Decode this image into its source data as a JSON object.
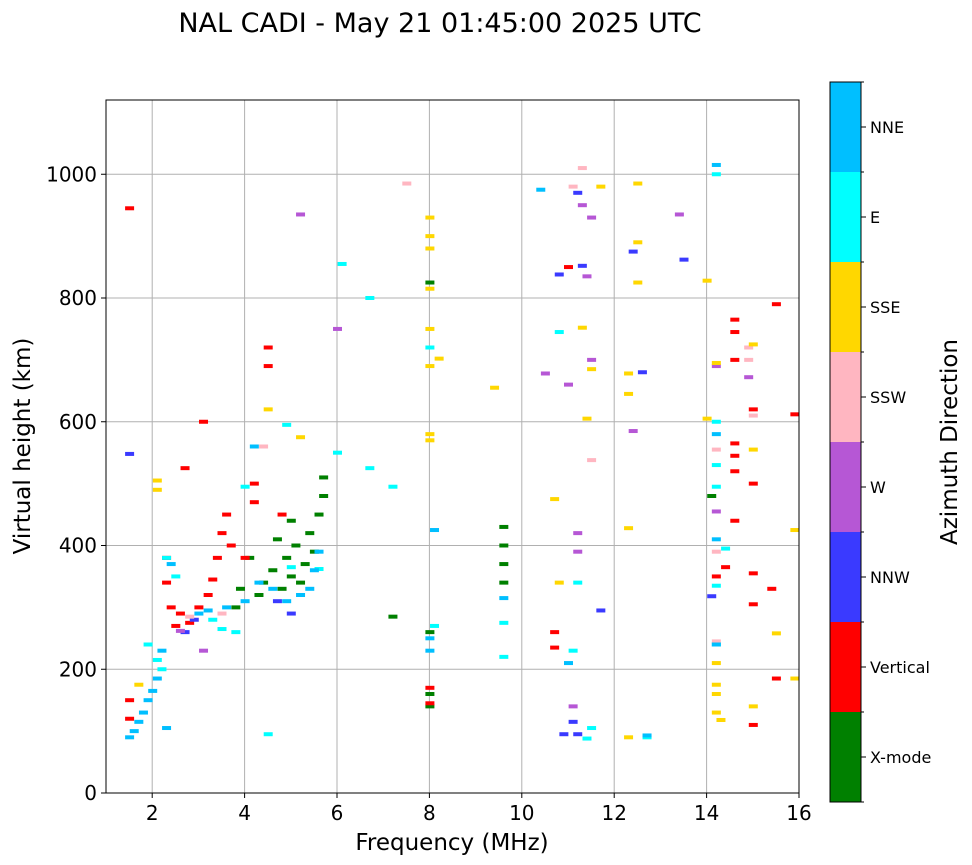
{
  "chart_data": {
    "type": "scatter",
    "title": "NAL CADI - May 21 01:45:00 2025 UTC",
    "xlabel": "Frequency (MHz)",
    "ylabel": "Virtual height (km)",
    "xlim": [
      1,
      16
    ],
    "ylim": [
      0,
      1120
    ],
    "xticks": [
      2,
      4,
      6,
      8,
      10,
      12,
      14,
      16
    ],
    "yticks": [
      0,
      200,
      400,
      600,
      800,
      1000
    ],
    "grid": true,
    "colorbar": {
      "title": "Azimuth Direction",
      "categories": [
        {
          "name": "X-mode",
          "color": "#008000"
        },
        {
          "name": "Vertical",
          "color": "#ff0000"
        },
        {
          "name": "NNW",
          "color": "#3a3aff"
        },
        {
          "name": "W",
          "color": "#b657d5"
        },
        {
          "name": "SSW",
          "color": "#ffb6c1"
        },
        {
          "name": "SSE",
          "color": "#ffd700"
        },
        {
          "name": "E",
          "color": "#00ffff"
        },
        {
          "name": "NNE",
          "color": "#00bfff"
        }
      ]
    },
    "series": [
      {
        "name": "X-mode",
        "points": [
          [
            4.3,
            320
          ],
          [
            4.4,
            340
          ],
          [
            4.6,
            360
          ],
          [
            4.8,
            330
          ],
          [
            4.9,
            380
          ],
          [
            5.0,
            350
          ],
          [
            5.1,
            400
          ],
          [
            5.2,
            340
          ],
          [
            5.3,
            370
          ],
          [
            5.4,
            420
          ],
          [
            5.5,
            390
          ],
          [
            5.6,
            450
          ],
          [
            5.7,
            480
          ],
          [
            5.7,
            510
          ],
          [
            5.0,
            440
          ],
          [
            4.7,
            410
          ],
          [
            3.9,
            330
          ],
          [
            3.8,
            300
          ],
          [
            4.1,
            380
          ],
          [
            8.0,
            825
          ],
          [
            8.0,
            260
          ],
          [
            8.0,
            160
          ],
          [
            8.0,
            140
          ],
          [
            9.6,
            430
          ],
          [
            9.6,
            400
          ],
          [
            9.6,
            370
          ],
          [
            9.6,
            340
          ],
          [
            14.1,
            480
          ],
          [
            7.2,
            285
          ]
        ]
      },
      {
        "name": "Vertical",
        "points": [
          [
            1.5,
            945
          ],
          [
            1.5,
            150
          ],
          [
            1.5,
            120
          ],
          [
            2.3,
            380
          ],
          [
            2.3,
            340
          ],
          [
            2.4,
            300
          ],
          [
            2.5,
            270
          ],
          [
            2.6,
            290
          ],
          [
            2.8,
            275
          ],
          [
            3.0,
            300
          ],
          [
            3.2,
            320
          ],
          [
            3.3,
            345
          ],
          [
            3.4,
            380
          ],
          [
            3.5,
            420
          ],
          [
            3.6,
            450
          ],
          [
            3.7,
            400
          ],
          [
            4.0,
            380
          ],
          [
            4.2,
            470
          ],
          [
            4.2,
            500
          ],
          [
            4.5,
            720
          ],
          [
            4.5,
            690
          ],
          [
            3.1,
            600
          ],
          [
            2.7,
            525
          ],
          [
            4.8,
            450
          ],
          [
            8.0,
            170
          ],
          [
            8.0,
            145
          ],
          [
            10.7,
            260
          ],
          [
            10.7,
            235
          ],
          [
            11.0,
            850
          ],
          [
            14.2,
            350
          ],
          [
            14.4,
            365
          ],
          [
            14.6,
            765
          ],
          [
            14.6,
            745
          ],
          [
            14.6,
            700
          ],
          [
            14.6,
            565
          ],
          [
            14.6,
            545
          ],
          [
            14.6,
            520
          ],
          [
            14.6,
            440
          ],
          [
            15.0,
            620
          ],
          [
            15.0,
            500
          ],
          [
            15.0,
            355
          ],
          [
            15.0,
            305
          ],
          [
            15.0,
            110
          ],
          [
            15.4,
            330
          ],
          [
            15.5,
            790
          ],
          [
            15.5,
            185
          ],
          [
            15.9,
            612
          ]
        ]
      },
      {
        "name": "NNW",
        "points": [
          [
            1.5,
            548
          ],
          [
            2.7,
            260
          ],
          [
            2.9,
            280
          ],
          [
            4.7,
            310
          ],
          [
            5.0,
            290
          ],
          [
            11.2,
            970
          ],
          [
            10.8,
            838
          ],
          [
            11.3,
            852
          ],
          [
            12.4,
            875
          ],
          [
            12.6,
            680
          ],
          [
            13.5,
            862
          ],
          [
            14.1,
            318
          ],
          [
            11.7,
            295
          ],
          [
            11.1,
            115
          ],
          [
            11.2,
            95
          ],
          [
            10.9,
            95
          ]
        ]
      },
      {
        "name": "W",
        "points": [
          [
            2.6,
            262
          ],
          [
            3.1,
            230
          ],
          [
            5.2,
            935
          ],
          [
            6.0,
            750
          ],
          [
            11.0,
            660
          ],
          [
            11.2,
            420
          ],
          [
            11.2,
            390
          ],
          [
            11.3,
            950
          ],
          [
            11.4,
            835
          ],
          [
            11.5,
            700
          ],
          [
            11.5,
            930
          ],
          [
            13.4,
            935
          ],
          [
            12.4,
            585
          ],
          [
            14.2,
            455
          ],
          [
            14.2,
            690
          ],
          [
            14.9,
            672
          ],
          [
            11.1,
            140
          ],
          [
            10.5,
            678
          ]
        ]
      },
      {
        "name": "SSW",
        "points": [
          [
            2.8,
            285
          ],
          [
            3.5,
            290
          ],
          [
            4.4,
            560
          ],
          [
            7.5,
            985
          ],
          [
            11.1,
            980
          ],
          [
            11.3,
            1010
          ],
          [
            11.5,
            538
          ],
          [
            14.2,
            245
          ],
          [
            14.2,
            390
          ],
          [
            14.2,
            555
          ],
          [
            14.9,
            720
          ],
          [
            14.9,
            700
          ],
          [
            15.0,
            610
          ]
        ]
      },
      {
        "name": "SSE",
        "points": [
          [
            1.7,
            175
          ],
          [
            2.1,
            505
          ],
          [
            2.1,
            490
          ],
          [
            4.5,
            620
          ],
          [
            5.2,
            575
          ],
          [
            8.0,
            930
          ],
          [
            8.0,
            900
          ],
          [
            8.0,
            880
          ],
          [
            8.0,
            815
          ],
          [
            8.0,
            750
          ],
          [
            8.0,
            690
          ],
          [
            8.0,
            580
          ],
          [
            8.0,
            570
          ],
          [
            8.2,
            702
          ],
          [
            9.4,
            655
          ],
          [
            10.7,
            475
          ],
          [
            10.8,
            340
          ],
          [
            11.3,
            752
          ],
          [
            11.4,
            605
          ],
          [
            11.5,
            685
          ],
          [
            11.7,
            980
          ],
          [
            12.5,
            985
          ],
          [
            12.5,
            890
          ],
          [
            12.5,
            825
          ],
          [
            12.3,
            678
          ],
          [
            12.3,
            645
          ],
          [
            12.3,
            428
          ],
          [
            12.3,
            90
          ],
          [
            14.0,
            828
          ],
          [
            14.0,
            605
          ],
          [
            14.2,
            695
          ],
          [
            14.2,
            210
          ],
          [
            14.2,
            175
          ],
          [
            14.2,
            160
          ],
          [
            14.2,
            130
          ],
          [
            14.3,
            118
          ],
          [
            15.0,
            725
          ],
          [
            15.0,
            555
          ],
          [
            15.0,
            140
          ],
          [
            15.5,
            258
          ],
          [
            15.9,
            425
          ],
          [
            15.9,
            185
          ]
        ]
      },
      {
        "name": "E",
        "points": [
          [
            1.9,
            240
          ],
          [
            2.1,
            215
          ],
          [
            2.2,
            200
          ],
          [
            2.3,
            380
          ],
          [
            2.5,
            350
          ],
          [
            3.3,
            280
          ],
          [
            3.5,
            265
          ],
          [
            3.8,
            260
          ],
          [
            4.0,
            495
          ],
          [
            4.5,
            95
          ],
          [
            4.9,
            595
          ],
          [
            5.0,
            365
          ],
          [
            5.6,
            362
          ],
          [
            6.0,
            550
          ],
          [
            6.1,
            855
          ],
          [
            6.7,
            800
          ],
          [
            6.7,
            525
          ],
          [
            7.2,
            495
          ],
          [
            8.0,
            720
          ],
          [
            8.1,
            270
          ],
          [
            9.6,
            275
          ],
          [
            9.6,
            220
          ],
          [
            10.8,
            745
          ],
          [
            11.1,
            230
          ],
          [
            11.5,
            105
          ],
          [
            11.4,
            88
          ],
          [
            11.2,
            340
          ],
          [
            12.7,
            90
          ],
          [
            14.2,
            600
          ],
          [
            14.2,
            530
          ],
          [
            14.2,
            495
          ],
          [
            14.2,
            335
          ],
          [
            14.2,
            240
          ],
          [
            14.2,
            1000
          ],
          [
            14.4,
            395
          ]
        ]
      },
      {
        "name": "NNE",
        "points": [
          [
            1.5,
            90
          ],
          [
            1.6,
            100
          ],
          [
            1.7,
            115
          ],
          [
            1.8,
            130
          ],
          [
            1.9,
            150
          ],
          [
            2.0,
            165
          ],
          [
            2.1,
            185
          ],
          [
            2.2,
            230
          ],
          [
            2.4,
            370
          ],
          [
            3.0,
            290
          ],
          [
            3.2,
            295
          ],
          [
            3.6,
            300
          ],
          [
            4.0,
            310
          ],
          [
            4.3,
            340
          ],
          [
            4.6,
            330
          ],
          [
            4.9,
            310
          ],
          [
            5.2,
            320
          ],
          [
            5.4,
            330
          ],
          [
            5.5,
            360
          ],
          [
            5.6,
            390
          ],
          [
            4.2,
            560
          ],
          [
            2.3,
            105
          ],
          [
            8.0,
            250
          ],
          [
            8.0,
            230
          ],
          [
            8.1,
            425
          ],
          [
            9.6,
            315
          ],
          [
            10.4,
            975
          ],
          [
            11.0,
            210
          ],
          [
            12.7,
            93
          ],
          [
            14.2,
            240
          ],
          [
            14.2,
            410
          ],
          [
            14.2,
            580
          ],
          [
            14.2,
            1015
          ]
        ]
      }
    ]
  }
}
